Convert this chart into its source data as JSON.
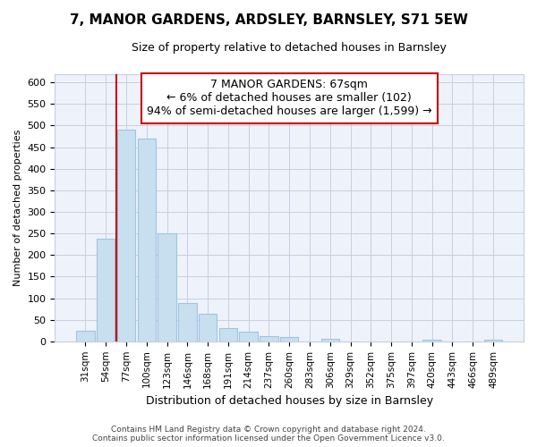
{
  "title": "7, MANOR GARDENS, ARDSLEY, BARNSLEY, S71 5EW",
  "subtitle": "Size of property relative to detached houses in Barnsley",
  "xlabel": "Distribution of detached houses by size in Barnsley",
  "ylabel": "Number of detached properties",
  "bar_labels": [
    "31sqm",
    "54sqm",
    "77sqm",
    "100sqm",
    "123sqm",
    "146sqm",
    "168sqm",
    "191sqm",
    "214sqm",
    "237sqm",
    "260sqm",
    "283sqm",
    "306sqm",
    "329sqm",
    "352sqm",
    "375sqm",
    "397sqm",
    "420sqm",
    "443sqm",
    "466sqm",
    "489sqm"
  ],
  "bar_values": [
    25,
    238,
    490,
    470,
    250,
    88,
    63,
    30,
    22,
    13,
    10,
    0,
    5,
    0,
    0,
    0,
    0,
    3,
    0,
    0,
    4
  ],
  "bar_color": "#c8dff0",
  "bar_edge_color": "#a0c4e0",
  "vline_color": "#cc0000",
  "vline_x": 1.5,
  "ylim": [
    0,
    620
  ],
  "yticks": [
    0,
    50,
    100,
    150,
    200,
    250,
    300,
    350,
    400,
    450,
    500,
    550,
    600
  ],
  "annotation_title": "7 MANOR GARDENS: 67sqm",
  "annotation_line1": "← 6% of detached houses are smaller (102)",
  "annotation_line2": "94% of semi-detached houses are larger (1,599) →",
  "annotation_box_facecolor": "#ffffff",
  "annotation_box_edgecolor": "#cc0000",
  "footer_line1": "Contains HM Land Registry data © Crown copyright and database right 2024.",
  "footer_line2": "Contains public sector information licensed under the Open Government Licence v3.0.",
  "plot_bg_color": "#eef2fb",
  "grid_color": "#c8cedf",
  "title_fontsize": 11,
  "subtitle_fontsize": 9,
  "ylabel_fontsize": 8,
  "xlabel_fontsize": 9,
  "ytick_fontsize": 8,
  "xtick_fontsize": 7.5,
  "footer_fontsize": 6.5,
  "ann_fontsize": 9
}
